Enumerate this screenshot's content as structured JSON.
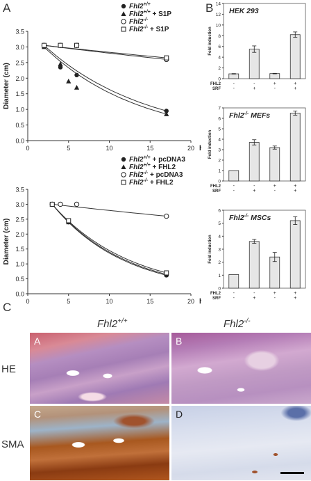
{
  "panel_labels": {
    "a": "A",
    "b": "B",
    "c": "C"
  },
  "panelA": {
    "ylabel": "Diameter (cm)",
    "xunit": "h",
    "yticks": [
      "3.5",
      "3.0",
      "2.5",
      "2.0",
      "1.5",
      "1.0",
      "0.5",
      "0.0"
    ],
    "xticks": [
      "0",
      "5",
      "10",
      "15",
      "20"
    ],
    "top_legend": [
      {
        "gene": "Fhl2",
        "sup": "+/+",
        "suffix": ""
      },
      {
        "gene": "Fhl2",
        "sup": "+/+",
        "suffix": " + S1P"
      },
      {
        "gene": "Fhl2",
        "sup": "-/-",
        "suffix": ""
      },
      {
        "gene": "Fhl2",
        "sup": "-/-",
        "suffix": " + S1P"
      }
    ],
    "bottom_legend": [
      {
        "gene": "Fhl2",
        "sup": "+/+",
        "suffix": " + pcDNA3"
      },
      {
        "gene": "Fhl2",
        "sup": "+/+",
        "suffix": " + FHL2"
      },
      {
        "gene": "Fhl2",
        "sup": "-/-",
        "suffix": " + pcDNA3"
      },
      {
        "gene": "Fhl2",
        "sup": "-/-",
        "suffix": " + FHL2"
      }
    ]
  },
  "panelB": {
    "ylabel": "Fold induction",
    "row_labels": [
      "FHL2",
      "SRF"
    ],
    "bars": [
      {
        "title": "HEK 293",
        "yticks": [
          "0",
          "2",
          "4",
          "6",
          "8",
          "10",
          "12",
          "14"
        ],
        "fhl2": [
          "-",
          "-",
          "+",
          "+"
        ],
        "srf": [
          "-",
          "+",
          "-",
          "+"
        ]
      },
      {
        "title": "Fhl2-/- MEFs",
        "yticks": [
          "0",
          "1",
          "2",
          "3",
          "4",
          "5",
          "6",
          "7"
        ],
        "fhl2": [
          "-",
          "-",
          "+",
          "+"
        ],
        "srf": [
          "-",
          "+",
          "-",
          "+"
        ]
      },
      {
        "title": "Fhl2-/- MSCs",
        "yticks": [
          "0",
          "1",
          "2",
          "3",
          "4",
          "5",
          "6"
        ],
        "fhl2": [
          "-",
          "-",
          "+",
          "+"
        ],
        "srf": [
          "-",
          "+",
          "-",
          "+"
        ]
      }
    ]
  },
  "panelC": {
    "col_left": "Fhl2+/+",
    "col_right": "Fhl2-/-",
    "row1": "HE",
    "row2": "SMA",
    "tags": [
      "A",
      "B",
      "C",
      "D"
    ]
  },
  "chart_data": [
    {
      "type": "scatter",
      "xlabel": "h",
      "ylabel": "Diameter (cm)",
      "xlim": [
        0,
        20
      ],
      "ylim": [
        0,
        3.5
      ],
      "series": [
        {
          "name": "Fhl2+/+",
          "marker": "filled-circle",
          "x": [
            2,
            4,
            6,
            17
          ],
          "y": [
            3.05,
            2.35,
            2.1,
            0.95
          ]
        },
        {
          "name": "Fhl2+/+ + S1P",
          "marker": "filled-triangle",
          "x": [
            2,
            4,
            5,
            6,
            17
          ],
          "y": [
            3.0,
            2.45,
            1.9,
            1.7,
            0.85
          ]
        },
        {
          "name": "Fhl2-/-",
          "marker": "open-circle",
          "x": [
            2,
            4,
            6,
            17
          ],
          "y": [
            3.05,
            3.05,
            3.05,
            2.6
          ]
        },
        {
          "name": "Fhl2-/- + S1P",
          "marker": "open-square",
          "x": [
            2,
            4,
            6,
            17
          ],
          "y": [
            3.05,
            3.05,
            3.05,
            2.65
          ]
        }
      ]
    },
    {
      "type": "scatter",
      "xlabel": "h",
      "ylabel": "Diameter (cm)",
      "xlim": [
        0,
        20
      ],
      "ylim": [
        0,
        3.5
      ],
      "series": [
        {
          "name": "Fhl2+/+ + pcDNA3",
          "marker": "filled-circle",
          "x": [
            3,
            5,
            17
          ],
          "y": [
            3.0,
            2.4,
            0.62
          ]
        },
        {
          "name": "Fhl2+/+ + FHL2",
          "marker": "filled-triangle",
          "x": [
            3,
            5,
            17
          ],
          "y": [
            3.0,
            2.4,
            0.65
          ]
        },
        {
          "name": "Fhl2-/- + pcDNA3",
          "marker": "open-circle",
          "x": [
            3,
            4,
            6,
            17
          ],
          "y": [
            3.0,
            3.0,
            3.0,
            2.6
          ]
        },
        {
          "name": "Fhl2-/- + FHL2",
          "marker": "open-square",
          "x": [
            3,
            5,
            17
          ],
          "y": [
            3.0,
            2.45,
            0.7
          ]
        }
      ]
    },
    {
      "type": "bar",
      "title": "HEK 293",
      "ylabel": "Fold induction",
      "ylim": [
        0,
        14
      ],
      "categories": [
        "-/-",
        "-/+",
        "+/-",
        "+/+"
      ],
      "values": [
        0.9,
        5.5,
        0.95,
        8.2
      ],
      "errors": [
        0.05,
        0.6,
        0.05,
        0.5
      ]
    },
    {
      "type": "bar",
      "title": "Fhl2-/- MEFs",
      "ylabel": "Fold induction",
      "ylim": [
        0,
        7
      ],
      "categories": [
        "-/-",
        "-/+",
        "+/-",
        "+/+"
      ],
      "values": [
        1.0,
        3.7,
        3.2,
        6.5
      ],
      "errors": [
        0.0,
        0.25,
        0.15,
        0.2
      ]
    },
    {
      "type": "bar",
      "title": "Fhl2-/- MSCs",
      "ylabel": "Fold induction",
      "ylim": [
        0,
        6
      ],
      "categories": [
        "-/-",
        "-/+",
        "+/-",
        "+/+"
      ],
      "values": [
        1.05,
        3.6,
        2.4,
        5.2
      ],
      "errors": [
        0.0,
        0.15,
        0.35,
        0.3
      ]
    }
  ]
}
